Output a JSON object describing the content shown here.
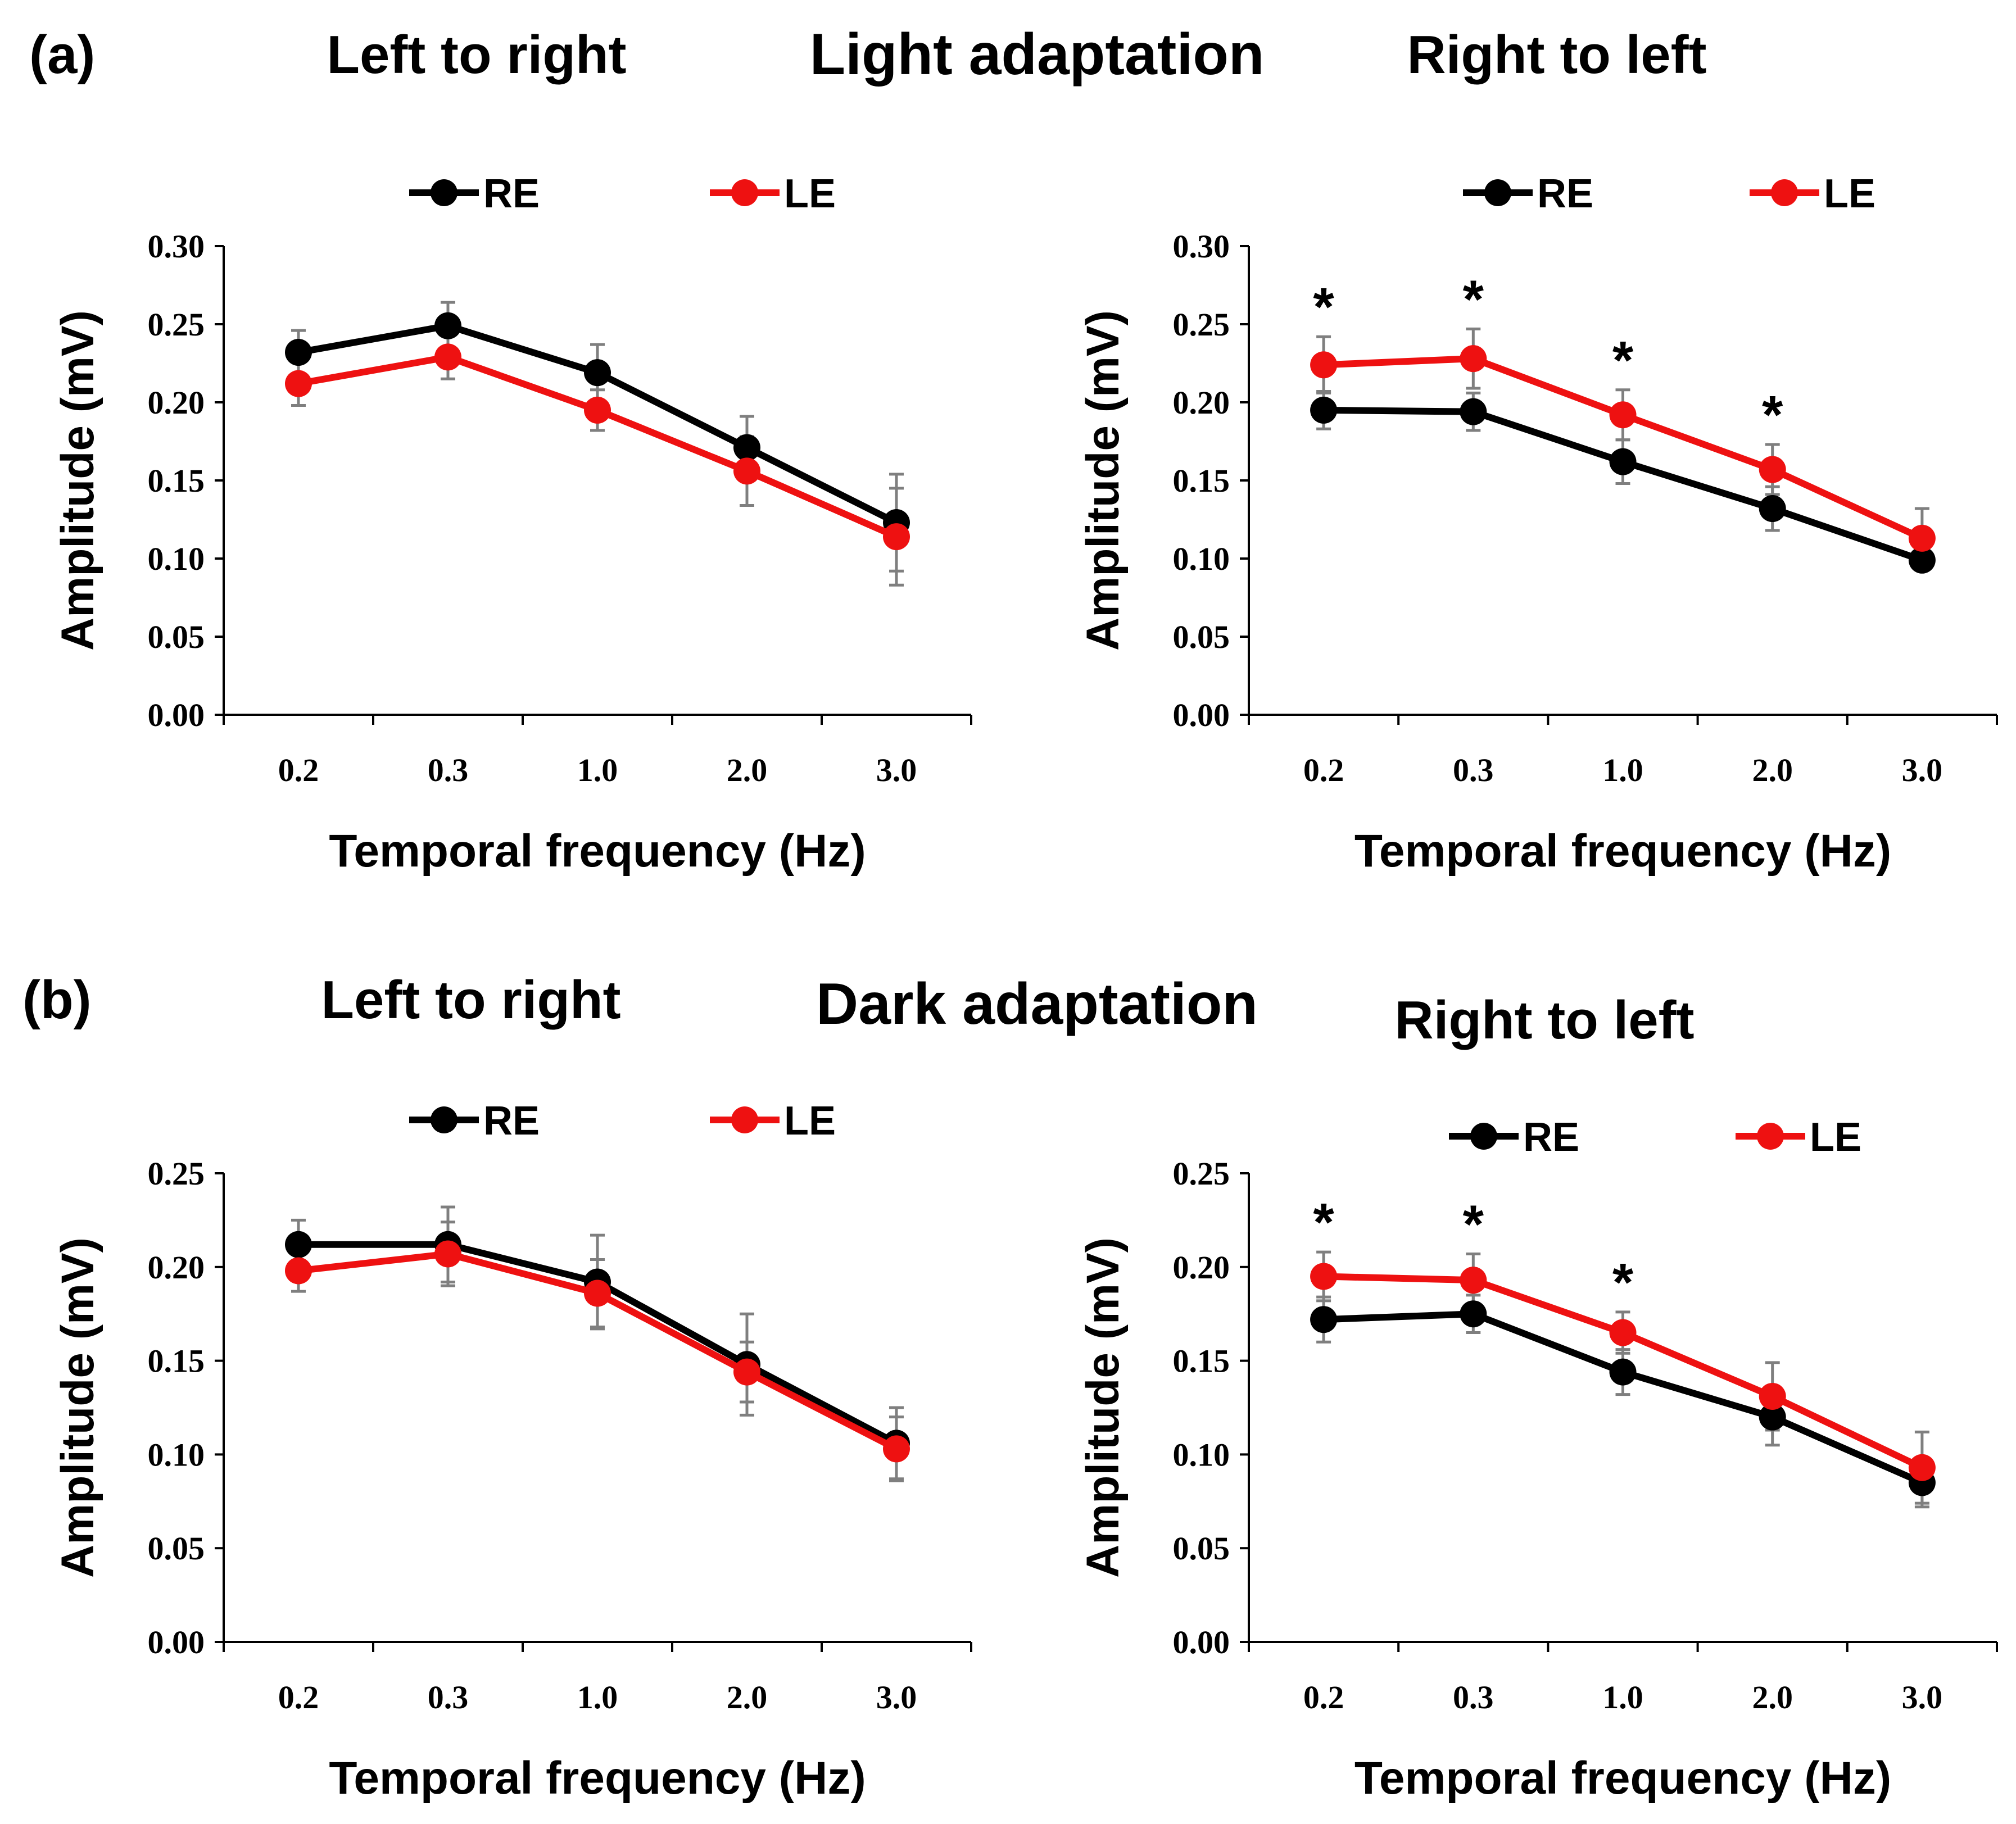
{
  "figure": {
    "panel_a": {
      "label": "(a)",
      "title": "Light adaptation"
    },
    "panel_b": {
      "label": "(b)",
      "title": "Dark adaptation"
    },
    "legend": {
      "re": "RE",
      "le": "LE"
    },
    "colors": {
      "re": "#000000",
      "le": "#ee1111",
      "error_bar": "#7f7f7f"
    },
    "significance_symbol": "*"
  },
  "chart_data": [
    {
      "id": "a-left",
      "type": "line",
      "title": "Left to right",
      "xlabel": "Temporal frequency (Hz)",
      "ylabel": "Amplitude (mV)",
      "categories": [
        "0.2",
        "0.3",
        "1.0",
        "2.0",
        "3.0"
      ],
      "ylim": [
        0,
        0.3
      ],
      "yticks": [
        "0.00",
        "0.05",
        "0.10",
        "0.15",
        "0.20",
        "0.25",
        "0.30"
      ],
      "series": [
        {
          "name": "RE",
          "values": [
            0.232,
            0.249,
            0.219,
            0.171,
            0.123
          ],
          "errors": [
            0.014,
            0.015,
            0.018,
            0.02,
            0.031
          ]
        },
        {
          "name": "LE",
          "values": [
            0.212,
            0.229,
            0.195,
            0.156,
            0.114
          ],
          "errors": [
            0.014,
            0.014,
            0.013,
            0.022,
            0.031
          ]
        }
      ],
      "significant": [
        false,
        false,
        false,
        false,
        false
      ]
    },
    {
      "id": "a-right",
      "type": "line",
      "title": "Right to left",
      "xlabel": "Temporal frequency (Hz)",
      "ylabel": "Amplitude (mV)",
      "categories": [
        "0.2",
        "0.3",
        "1.0",
        "2.0",
        "3.0"
      ],
      "ylim": [
        0,
        0.3
      ],
      "yticks": [
        "0.00",
        "0.05",
        "0.10",
        "0.15",
        "0.20",
        "0.25",
        "0.30"
      ],
      "series": [
        {
          "name": "RE",
          "values": [
            0.195,
            0.194,
            0.162,
            0.132,
            0.099
          ],
          "errors": [
            0.012,
            0.012,
            0.014,
            0.014,
            0.006
          ]
        },
        {
          "name": "LE",
          "values": [
            0.224,
            0.228,
            0.192,
            0.157,
            0.113
          ],
          "errors": [
            0.018,
            0.019,
            0.016,
            0.016,
            0.019
          ]
        }
      ],
      "significant": [
        true,
        true,
        true,
        true,
        false
      ]
    },
    {
      "id": "b-left",
      "type": "line",
      "title": "Left to right",
      "xlabel": "Temporal frequency (Hz)",
      "ylabel": "Amplitude (mV)",
      "categories": [
        "0.2",
        "0.3",
        "1.0",
        "2.0",
        "3.0"
      ],
      "ylim": [
        0,
        0.25
      ],
      "yticks": [
        "0.00",
        "0.05",
        "0.10",
        "0.15",
        "0.20",
        "0.25"
      ],
      "series": [
        {
          "name": "RE",
          "values": [
            0.212,
            0.212,
            0.192,
            0.148,
            0.106
          ],
          "errors": [
            0.013,
            0.02,
            0.025,
            0.027,
            0.019
          ]
        },
        {
          "name": "LE",
          "values": [
            0.198,
            0.207,
            0.186,
            0.144,
            0.103
          ],
          "errors": [
            0.011,
            0.017,
            0.018,
            0.016,
            0.017
          ]
        }
      ],
      "significant": [
        false,
        false,
        false,
        false,
        false
      ]
    },
    {
      "id": "b-right",
      "type": "line",
      "title": "Right to left",
      "xlabel": "Temporal frequency (Hz)",
      "ylabel": "Amplitude (mV)",
      "categories": [
        "0.2",
        "0.3",
        "1.0",
        "2.0",
        "3.0"
      ],
      "ylim": [
        0,
        0.25
      ],
      "yticks": [
        "0.00",
        "0.05",
        "0.10",
        "0.15",
        "0.20",
        "0.25"
      ],
      "series": [
        {
          "name": "RE",
          "values": [
            0.172,
            0.175,
            0.144,
            0.12,
            0.085
          ],
          "errors": [
            0.012,
            0.01,
            0.012,
            0.015,
            0.013
          ]
        },
        {
          "name": "LE",
          "values": [
            0.195,
            0.193,
            0.165,
            0.131,
            0.093
          ],
          "errors": [
            0.013,
            0.014,
            0.011,
            0.018,
            0.019
          ]
        }
      ],
      "significant": [
        true,
        true,
        true,
        false,
        false
      ]
    }
  ]
}
